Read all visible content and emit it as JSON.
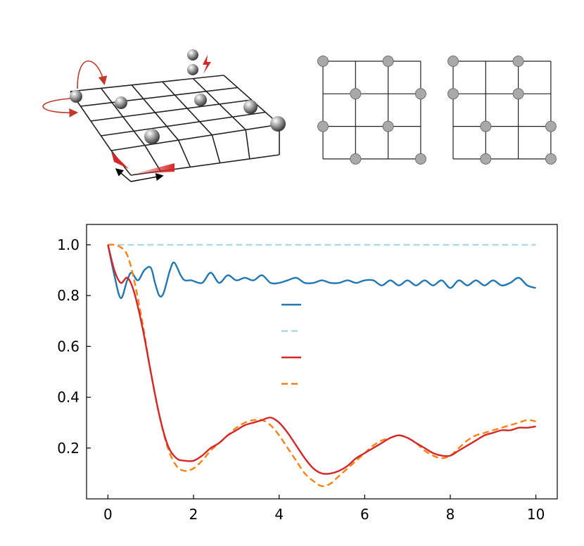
{
  "colors": {
    "series_1": "#1f77b4",
    "series_2": "#add8e6",
    "series_3": "#d62728",
    "series_4": "#ff7f0e",
    "accent": "#d62728"
  },
  "illustrations": {
    "lattice_3d": "perspective 5x4 square lattice with atoms, hop arrows, drive arrows and tilt markers",
    "pattern_a": "3x3 square grid with occupied sites",
    "pattern_b": "3x3 square grid with occupied sites"
  },
  "chart_data": {
    "type": "line",
    "xlim": [
      -0.5,
      10.5
    ],
    "ylim": [
      0.0,
      1.08
    ],
    "xticks": [
      "0",
      "2",
      "4",
      "6",
      "8",
      "10"
    ],
    "yticks": [
      "0.2",
      "0.4",
      "0.6",
      "0.8",
      "1.0"
    ],
    "legend": "center, with line samples only (no text)",
    "grid": false,
    "series": [
      {
        "style": "solid",
        "color": "#1f77b4",
        "x": [
          0,
          0.15,
          0.3,
          0.45,
          0.55,
          0.7,
          0.85,
          1.0,
          1.1,
          1.2,
          1.3,
          1.45,
          1.55,
          1.7,
          1.8,
          1.95,
          2.2,
          2.4,
          2.6,
          2.8,
          3.0,
          3.2,
          3.4,
          3.6,
          3.8,
          4.0,
          4.2,
          4.4,
          4.6,
          4.8,
          5.0,
          5.2,
          5.4,
          5.6,
          5.8,
          6.0,
          6.2,
          6.4,
          6.6,
          6.8,
          7.0,
          7.2,
          7.4,
          7.6,
          7.8,
          8.0,
          8.2,
          8.4,
          8.6,
          8.8,
          9.0,
          9.2,
          9.4,
          9.6,
          9.8,
          10.0
        ],
        "y": [
          1.0,
          0.88,
          0.79,
          0.86,
          0.89,
          0.86,
          0.9,
          0.91,
          0.85,
          0.8,
          0.81,
          0.9,
          0.93,
          0.88,
          0.86,
          0.86,
          0.85,
          0.89,
          0.85,
          0.88,
          0.86,
          0.87,
          0.86,
          0.88,
          0.85,
          0.85,
          0.86,
          0.87,
          0.85,
          0.85,
          0.86,
          0.85,
          0.85,
          0.86,
          0.85,
          0.86,
          0.86,
          0.84,
          0.86,
          0.84,
          0.86,
          0.84,
          0.86,
          0.84,
          0.86,
          0.83,
          0.86,
          0.84,
          0.86,
          0.84,
          0.86,
          0.84,
          0.85,
          0.87,
          0.84,
          0.83
        ]
      },
      {
        "style": "dashed",
        "color": "#add8e6",
        "x": [
          0,
          10
        ],
        "y": [
          1.0,
          1.0
        ]
      },
      {
        "style": "solid",
        "color": "#d62728",
        "x": [
          0,
          0.15,
          0.3,
          0.45,
          0.6,
          0.8,
          1.0,
          1.2,
          1.4,
          1.6,
          1.8,
          2.0,
          2.2,
          2.4,
          2.6,
          2.8,
          3.0,
          3.2,
          3.4,
          3.6,
          3.8,
          4.0,
          4.2,
          4.4,
          4.6,
          4.8,
          5.0,
          5.2,
          5.4,
          5.6,
          5.8,
          6.0,
          6.2,
          6.4,
          6.6,
          6.8,
          7.0,
          7.2,
          7.4,
          7.6,
          7.8,
          8.0,
          8.2,
          8.4,
          8.6,
          8.8,
          9.0,
          9.2,
          9.4,
          9.6,
          9.8,
          10.0
        ],
        "y": [
          1.0,
          0.9,
          0.85,
          0.87,
          0.82,
          0.68,
          0.5,
          0.33,
          0.21,
          0.16,
          0.15,
          0.15,
          0.17,
          0.2,
          0.22,
          0.25,
          0.27,
          0.29,
          0.3,
          0.31,
          0.32,
          0.3,
          0.26,
          0.21,
          0.16,
          0.12,
          0.1,
          0.1,
          0.11,
          0.13,
          0.16,
          0.18,
          0.2,
          0.22,
          0.24,
          0.25,
          0.24,
          0.22,
          0.2,
          0.18,
          0.17,
          0.17,
          0.19,
          0.21,
          0.23,
          0.25,
          0.26,
          0.27,
          0.27,
          0.28,
          0.28,
          0.285
        ]
      },
      {
        "style": "dashed",
        "color": "#ff7f0e",
        "x": [
          0,
          0.15,
          0.3,
          0.45,
          0.6,
          0.8,
          1.0,
          1.2,
          1.4,
          1.6,
          1.8,
          2.0,
          2.2,
          2.4,
          2.6,
          2.8,
          3.0,
          3.2,
          3.4,
          3.6,
          3.8,
          4.0,
          4.2,
          4.4,
          4.6,
          4.8,
          5.0,
          5.2,
          5.4,
          5.6,
          5.8,
          6.0,
          6.2,
          6.4,
          6.6,
          6.8,
          7.0,
          7.2,
          7.4,
          7.6,
          7.8,
          8.0,
          8.2,
          8.4,
          8.6,
          8.8,
          9.0,
          9.2,
          9.4,
          9.6,
          9.8,
          10.0
        ],
        "y": [
          1.0,
          1.0,
          0.99,
          0.96,
          0.87,
          0.7,
          0.5,
          0.33,
          0.2,
          0.13,
          0.11,
          0.12,
          0.15,
          0.19,
          0.22,
          0.25,
          0.28,
          0.3,
          0.31,
          0.31,
          0.29,
          0.25,
          0.2,
          0.15,
          0.1,
          0.07,
          0.05,
          0.06,
          0.09,
          0.12,
          0.15,
          0.18,
          0.21,
          0.23,
          0.24,
          0.25,
          0.24,
          0.22,
          0.19,
          0.17,
          0.16,
          0.17,
          0.2,
          0.23,
          0.25,
          0.26,
          0.27,
          0.28,
          0.29,
          0.3,
          0.31,
          0.305
        ]
      }
    ]
  }
}
